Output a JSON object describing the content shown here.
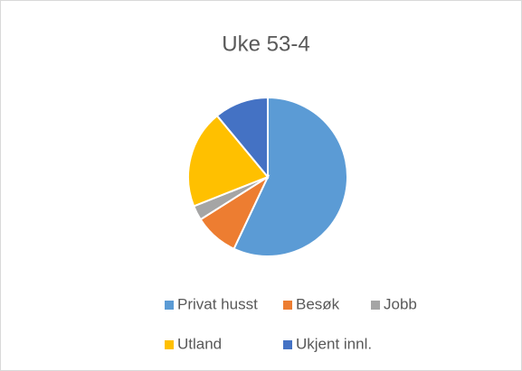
{
  "chart_data": {
    "type": "pie",
    "title": "Uke 53-4",
    "categories": [
      "Privat husst",
      "Besøk",
      "Jobb",
      "Utland",
      "Ukjent innl."
    ],
    "values": [
      57,
      9,
      3,
      20,
      11
    ],
    "colors": [
      "#5b9bd5",
      "#ed7d31",
      "#a5a5a5",
      "#ffc000",
      "#4472c4"
    ],
    "legend": "bottom"
  }
}
